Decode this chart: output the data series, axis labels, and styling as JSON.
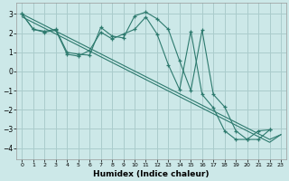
{
  "xlabel": "Humidex (Indice chaleur)",
  "background_color": "#cce8e8",
  "grid_color": "#aacccc",
  "line_color": "#2d7a6e",
  "xlim": [
    -0.5,
    23.5
  ],
  "ylim": [
    -4.6,
    3.6
  ],
  "yticks": [
    -4,
    -3,
    -2,
    -1,
    0,
    1,
    2,
    3
  ],
  "xticks": [
    0,
    1,
    2,
    3,
    4,
    5,
    6,
    7,
    8,
    9,
    10,
    11,
    12,
    13,
    14,
    15,
    16,
    17,
    18,
    19,
    20,
    21,
    22,
    23
  ],
  "line1_x": [
    0,
    1,
    2,
    3,
    4,
    5,
    6,
    7,
    8,
    9,
    10,
    11,
    12,
    13,
    14,
    15,
    16,
    17,
    18,
    19,
    20,
    21,
    22
  ],
  "line1_y": [
    3.0,
    2.2,
    2.1,
    2.2,
    1.0,
    0.9,
    0.85,
    2.3,
    1.85,
    1.75,
    2.9,
    3.1,
    2.75,
    2.2,
    0.55,
    -1.0,
    2.15,
    -1.2,
    -1.85,
    -3.1,
    -3.55,
    -3.55,
    -3.05
  ],
  "line2_x": [
    0,
    1,
    2,
    3,
    4,
    5,
    6,
    7,
    8,
    9,
    10,
    11,
    12,
    13,
    14,
    15,
    16,
    17,
    18,
    19,
    20,
    21,
    22
  ],
  "line2_y": [
    3.0,
    2.2,
    2.05,
    2.15,
    0.9,
    0.8,
    1.1,
    2.05,
    1.7,
    1.95,
    2.2,
    2.85,
    1.95,
    0.35,
    -0.95,
    2.1,
    -1.2,
    -1.9,
    -3.1,
    -3.55,
    -3.55,
    -3.1,
    -3.05
  ],
  "line3_x": [
    0,
    22,
    23
  ],
  "line3_y": [
    3.0,
    -3.55,
    -3.3
  ],
  "line4_x": [
    0,
    22,
    23
  ],
  "line4_y": [
    2.85,
    -3.7,
    -3.3
  ]
}
